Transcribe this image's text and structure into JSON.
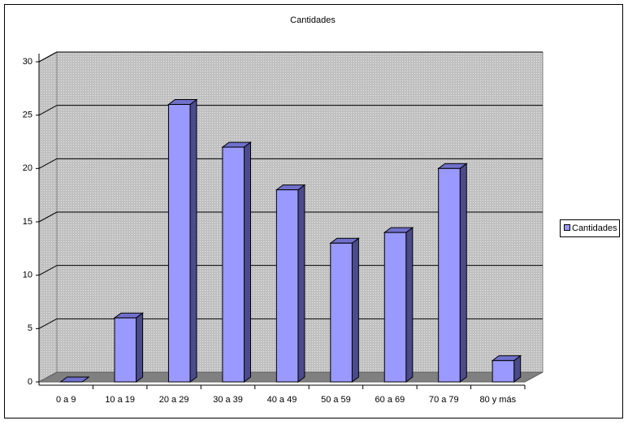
{
  "chart_data": {
    "type": "bar",
    "title": "Cantidades",
    "categories": [
      "0 a 9",
      "10 a 19",
      "20 a 29",
      "30 a 39",
      "40 a 49",
      "50 a 59",
      "60 a 69",
      "70 a 79",
      "80 y más"
    ],
    "series": [
      {
        "name": "Cantidades",
        "color": "#9999ff",
        "values": [
          0,
          6,
          26,
          22,
          18,
          13,
          14,
          20,
          2
        ]
      }
    ],
    "ylim": [
      0,
      30
    ],
    "yticks": [
      0,
      5,
      10,
      15,
      20,
      25,
      30
    ],
    "grid": true,
    "legend": "right"
  }
}
